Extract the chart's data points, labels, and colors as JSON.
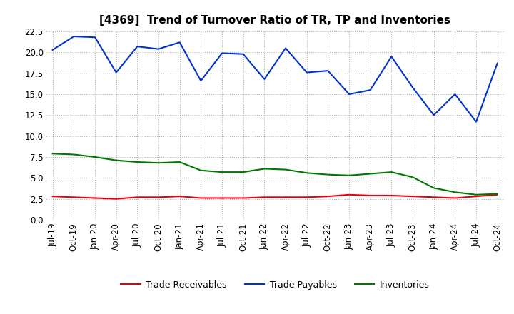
{
  "title": "[4369]  Trend of Turnover Ratio of TR, TP and Inventories",
  "x_labels": [
    "Jul-19",
    "Oct-19",
    "Jan-20",
    "Apr-20",
    "Jul-20",
    "Oct-20",
    "Jan-21",
    "Apr-21",
    "Jul-21",
    "Oct-21",
    "Jan-22",
    "Apr-22",
    "Jul-22",
    "Oct-22",
    "Jan-23",
    "Apr-23",
    "Jul-23",
    "Oct-23",
    "Jan-24",
    "Apr-24",
    "Jul-24",
    "Oct-24"
  ],
  "trade_receivables": [
    2.8,
    2.7,
    2.6,
    2.5,
    2.7,
    2.7,
    2.8,
    2.6,
    2.6,
    2.6,
    2.7,
    2.7,
    2.7,
    2.8,
    3.0,
    2.9,
    2.9,
    2.8,
    2.7,
    2.6,
    2.8,
    3.0
  ],
  "trade_payables": [
    20.3,
    21.9,
    21.8,
    17.6,
    20.7,
    20.4,
    21.2,
    16.6,
    19.9,
    19.8,
    16.8,
    20.5,
    17.6,
    17.8,
    15.0,
    15.5,
    19.5,
    15.8,
    12.5,
    15.0,
    11.7,
    18.7
  ],
  "inventories": [
    7.9,
    7.8,
    7.5,
    7.1,
    6.9,
    6.8,
    6.9,
    5.9,
    5.7,
    5.7,
    6.1,
    6.0,
    5.6,
    5.4,
    5.3,
    5.5,
    5.7,
    5.1,
    3.8,
    3.3,
    3.0,
    3.1
  ],
  "ylim": [
    0.0,
    22.5
  ],
  "yticks": [
    0.0,
    2.5,
    5.0,
    7.5,
    10.0,
    12.5,
    15.0,
    17.5,
    20.0,
    22.5
  ],
  "color_tr": "#e8000d",
  "color_tp": "#0033cc",
  "color_inv": "#007700",
  "background_color": "#ffffff",
  "grid_color": "#999999",
  "legend_labels": [
    "Trade Receivables",
    "Trade Payables",
    "Inventories"
  ],
  "title_fontsize": 11,
  "tick_fontsize": 8.5,
  "legend_fontsize": 9
}
